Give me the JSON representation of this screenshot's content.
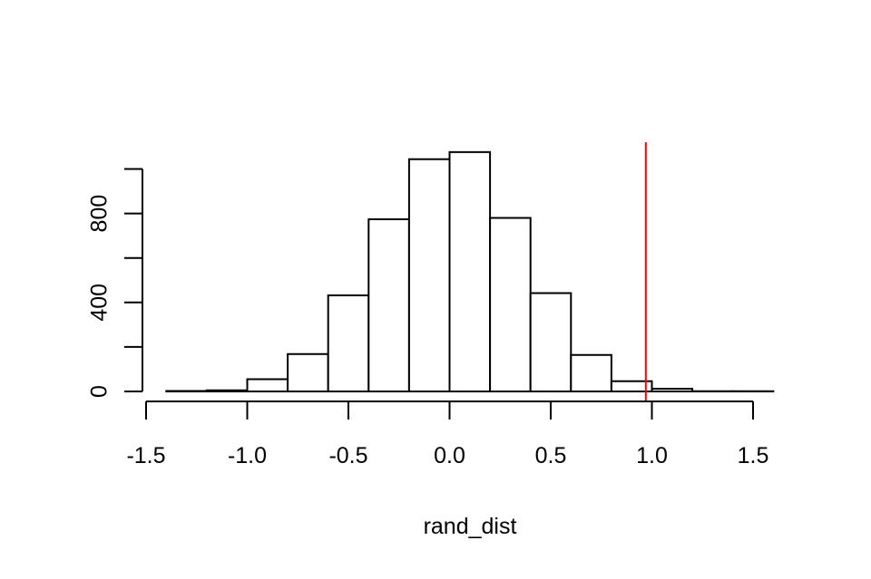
{
  "chart_data": {
    "type": "histogram",
    "title": "",
    "xlabel": "rand_dist",
    "ylabel": "",
    "xlim": [
      -1.5,
      1.6
    ],
    "ylim": [
      0,
      1100
    ],
    "x_ticks": [
      -1.5,
      -1.0,
      -0.5,
      0.0,
      0.5,
      1.0,
      1.5
    ],
    "x_tick_labels": [
      "-1.5",
      "-1.0",
      "-0.5",
      "0.0",
      "0.5",
      "1.0",
      "1.5"
    ],
    "y_ticks": [
      0,
      200,
      400,
      600,
      800,
      1000
    ],
    "y_tick_labels": [
      "0",
      "",
      "400",
      "",
      "800",
      ""
    ],
    "bins": [
      {
        "start": -1.4,
        "end": -1.2,
        "count": 2
      },
      {
        "start": -1.2,
        "end": -1.0,
        "count": 5
      },
      {
        "start": -1.0,
        "end": -0.8,
        "count": 55
      },
      {
        "start": -0.8,
        "end": -0.6,
        "count": 168
      },
      {
        "start": -0.6,
        "end": -0.4,
        "count": 432
      },
      {
        "start": -0.4,
        "end": -0.2,
        "count": 774
      },
      {
        "start": -0.2,
        "end": 0.0,
        "count": 1044
      },
      {
        "start": 0.0,
        "end": 0.2,
        "count": 1076
      },
      {
        "start": 0.2,
        "end": 0.4,
        "count": 780
      },
      {
        "start": 0.4,
        "end": 0.6,
        "count": 442
      },
      {
        "start": 0.6,
        "end": 0.8,
        "count": 164
      },
      {
        "start": 0.8,
        "end": 1.0,
        "count": 46
      },
      {
        "start": 1.0,
        "end": 1.2,
        "count": 12
      },
      {
        "start": 1.2,
        "end": 1.4,
        "count": 1
      },
      {
        "start": 1.4,
        "end": 1.6,
        "count": 1
      }
    ],
    "reference_line": {
      "x": 0.97,
      "color": "#ff0000"
    },
    "bar_fill": "#ffffff",
    "bar_stroke": "#000000",
    "grid": false,
    "legend": "none"
  }
}
